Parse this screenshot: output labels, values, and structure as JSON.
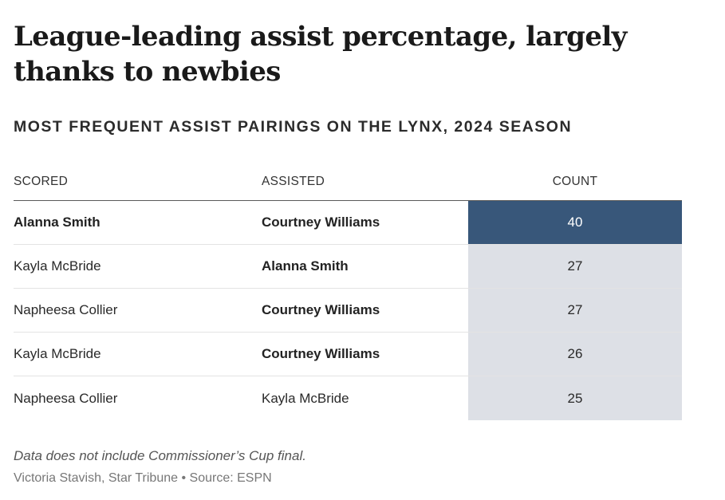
{
  "headline": "League-leading assist percentage, largely thanks to newbies",
  "subhead": "MOST FREQUENT ASSIST PAIRINGS ON THE LYNX, 2024 SEASON",
  "note": "Data does not include Commissioner’s Cup final.",
  "credit": "Victoria Stavish, Star Tribune • Source: ESPN",
  "colors": {
    "count_max": "#38577a",
    "count_rest": "#dde0e6",
    "count_max_text": "#ffffff"
  },
  "chart_data": {
    "type": "table",
    "columns": [
      "SCORED",
      "ASSISTED",
      "COUNT"
    ],
    "rows": [
      {
        "scored": "Alanna Smith",
        "assisted": "Courtney Williams",
        "count": 40,
        "scored_bold": true,
        "assisted_bold": true
      },
      {
        "scored": "Kayla McBride",
        "assisted": "Alanna Smith",
        "count": 27,
        "scored_bold": false,
        "assisted_bold": true
      },
      {
        "scored": "Napheesa Collier",
        "assisted": "Courtney Williams",
        "count": 27,
        "scored_bold": false,
        "assisted_bold": true
      },
      {
        "scored": "Kayla McBride",
        "assisted": "Courtney Williams",
        "count": 26,
        "scored_bold": false,
        "assisted_bold": true
      },
      {
        "scored": "Napheesa Collier",
        "assisted": "Kayla McBride",
        "count": 25,
        "scored_bold": false,
        "assisted_bold": false
      }
    ]
  }
}
